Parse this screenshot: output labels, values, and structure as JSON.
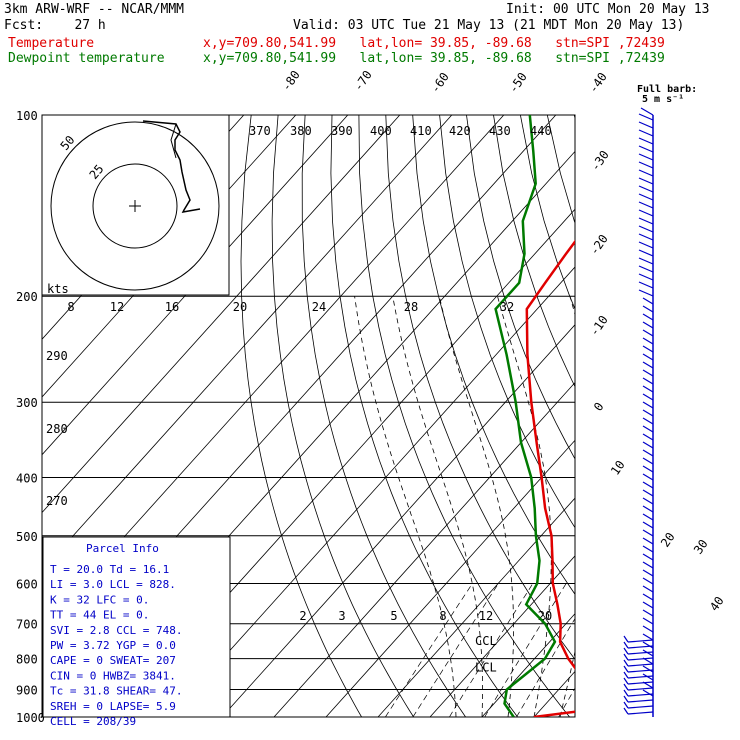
{
  "header": {
    "title": "3km ARW-WRF -- NCAR/MMM",
    "init": "Init: 00 UTC Mon 20 May 13",
    "fcst": "Fcst:    27 h",
    "valid": "Valid: 03 UTC Tue 21 May 13 (21 MDT Mon 20 May 13)",
    "temp_label": "Temperature",
    "temp_loc": "x,y=709.80,541.99   lat,lon= 39.85, -89.68   stn=SPI ,72439",
    "dew_label": "Dewpoint temperature",
    "dew_loc": "x,y=709.80,541.99   lat,lon= 39.85, -89.68   stn=SPI ,72439",
    "barb_label1": "Full barb:",
    "barb_label2": "5 m s⁻¹"
  },
  "colors": {
    "temperature": "#e00000",
    "dewpoint": "#007a00",
    "text_blue": "#0000c8",
    "barbs": "#0000c8"
  },
  "chart_data": {
    "type": "skew-t",
    "pressure_levels": [
      100,
      200,
      300,
      400,
      500,
      600,
      700,
      800,
      900,
      1000
    ],
    "temperature_axis_labels": [
      "-80",
      "-70",
      "-60",
      "-50",
      "-40",
      "-30",
      "-20",
      "-10",
      "0",
      "10",
      "20",
      "30",
      "40"
    ],
    "theta_labels": [
      "370",
      "380",
      "390",
      "400",
      "410",
      "420",
      "430",
      "440"
    ],
    "theta_labels_left": [
      "290",
      "280",
      "270"
    ],
    "mixing_ratio_labels": [
      "2",
      "3",
      "5",
      "8",
      "12",
      "20"
    ],
    "hodograph": {
      "rings": [
        "25",
        "50"
      ],
      "units": "kts",
      "speed_labels": [
        "8",
        "12",
        "16",
        "20",
        "24",
        "28",
        "32"
      ]
    },
    "temperature_profile": [
      {
        "p": 1000,
        "t": 20.0
      },
      {
        "p": 980,
        "t": 27.0
      },
      {
        "p": 940,
        "t": 28.5
      },
      {
        "p": 900,
        "t": 26.5
      },
      {
        "p": 850,
        "t": 21.5
      },
      {
        "p": 800,
        "t": 16.5
      },
      {
        "p": 750,
        "t": 12.0
      },
      {
        "p": 700,
        "t": 9.0
      },
      {
        "p": 650,
        "t": 5.0
      },
      {
        "p": 600,
        "t": 0.5
      },
      {
        "p": 550,
        "t": -3.5
      },
      {
        "p": 500,
        "t": -8.0
      },
      {
        "p": 450,
        "t": -14.0
      },
      {
        "p": 400,
        "t": -20.0
      },
      {
        "p": 350,
        "t": -27.0
      },
      {
        "p": 300,
        "t": -35.0
      },
      {
        "p": 250,
        "t": -44.0
      },
      {
        "p": 210,
        "t": -52.0
      },
      {
        "p": 190,
        "t": -53.0
      },
      {
        "p": 170,
        "t": -54.0
      },
      {
        "p": 150,
        "t": -55.0
      },
      {
        "p": 130,
        "t": -61.0
      },
      {
        "p": 115,
        "t": -66.0
      },
      {
        "p": 100,
        "t": -71.0
      }
    ],
    "dewpoint_profile": [
      {
        "p": 1000,
        "t": 16.1
      },
      {
        "p": 950,
        "t": 12.0
      },
      {
        "p": 900,
        "t": 10.0
      },
      {
        "p": 850,
        "t": 11.0
      },
      {
        "p": 800,
        "t": 12.0
      },
      {
        "p": 750,
        "t": 11.0
      },
      {
        "p": 700,
        "t": 6.0
      },
      {
        "p": 650,
        "t": -1.0
      },
      {
        "p": 600,
        "t": -2.5
      },
      {
        "p": 550,
        "t": -6.0
      },
      {
        "p": 500,
        "t": -11.0
      },
      {
        "p": 450,
        "t": -16.0
      },
      {
        "p": 400,
        "t": -22.0
      },
      {
        "p": 350,
        "t": -30.0
      },
      {
        "p": 300,
        "t": -38.0
      },
      {
        "p": 250,
        "t": -48.0
      },
      {
        "p": 210,
        "t": -58.0
      },
      {
        "p": 190,
        "t": -58.0
      },
      {
        "p": 170,
        "t": -62.0
      },
      {
        "p": 150,
        "t": -68.0
      },
      {
        "p": 130,
        "t": -72.0
      },
      {
        "p": 115,
        "t": -78.0
      },
      {
        "p": 100,
        "t": -85.0
      }
    ],
    "annotations": [
      "CCL",
      "LCL"
    ]
  },
  "parcel_info": {
    "title": "Parcel Info",
    "rows": [
      "T  =   20.0  Td =  16.1",
      "LI =    3.0  LCL =  828.",
      "K  =     32  LFC =    0.",
      "TT =     44  EL  =    0.",
      "SVI =   2.8  CCL =  748.",
      "PW =   3.72  YGP =   0.0",
      "CAPE =    0  SWEAT=  207",
      "CIN =     0  HWBZ= 3841.",
      "Tc =   31.8  SHEAR=  47.",
      "SREH =    0  LAPSE=  5.9",
      "CELL = 208/39"
    ]
  }
}
